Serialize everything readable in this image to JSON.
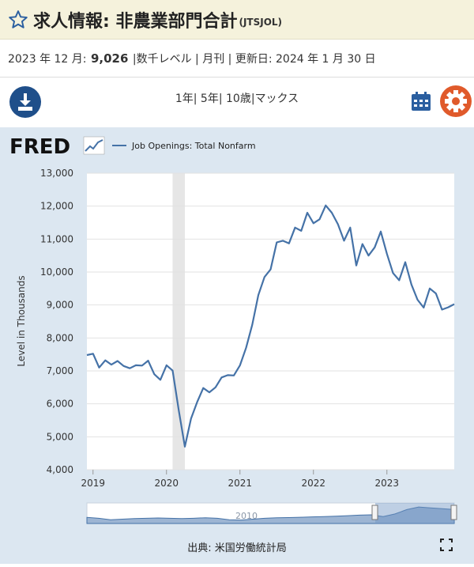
{
  "header": {
    "title": "求人情報: 非農業部門合計",
    "series_id": "(JTSJOL)"
  },
  "info": {
    "period": "2023 年 12 月:",
    "value": "9,026",
    "unit": "|数千レベル | 月刊 | 更新日:",
    "updated": "2024 年 1 月 30 日"
  },
  "toolbar": {
    "ranges": [
      "1年",
      "5年",
      "10歳",
      "マックス"
    ]
  },
  "logo": {
    "text": "FRED"
  },
  "chart_data": {
    "type": "line",
    "legend": "Job Openings: Total Nonfarm",
    "ylabel": "Level in Thousands",
    "xlabel": "",
    "ylim": [
      4000,
      13000
    ],
    "yticks": [
      "4,000",
      "5,000",
      "6,000",
      "7,000",
      "8,000",
      "9,000",
      "10,000",
      "11,000",
      "12,000",
      "13,000"
    ],
    "xticks": [
      "2019",
      "2020",
      "2021",
      "2022",
      "2023"
    ],
    "recession": [
      "2020-02",
      "2020-04"
    ],
    "series": [
      {
        "values": [
          [
            "2018-12",
            7480
          ],
          [
            "2019-01",
            7520
          ],
          [
            "2019-02",
            7100
          ],
          [
            "2019-03",
            7320
          ],
          [
            "2019-04",
            7190
          ],
          [
            "2019-05",
            7300
          ],
          [
            "2019-06",
            7150
          ],
          [
            "2019-07",
            7080
          ],
          [
            "2019-08",
            7170
          ],
          [
            "2019-09",
            7160
          ],
          [
            "2019-10",
            7310
          ],
          [
            "2019-11",
            6900
          ],
          [
            "2019-12",
            6730
          ],
          [
            "2020-01",
            7170
          ],
          [
            "2020-02",
            7010
          ],
          [
            "2020-03",
            5800
          ],
          [
            "2020-04",
            4700
          ],
          [
            "2020-05",
            5550
          ],
          [
            "2020-06",
            6050
          ],
          [
            "2020-07",
            6480
          ],
          [
            "2020-08",
            6350
          ],
          [
            "2020-09",
            6500
          ],
          [
            "2020-10",
            6800
          ],
          [
            "2020-11",
            6870
          ],
          [
            "2020-12",
            6860
          ],
          [
            "2021-01",
            7170
          ],
          [
            "2021-02",
            7700
          ],
          [
            "2021-03",
            8400
          ],
          [
            "2021-04",
            9300
          ],
          [
            "2021-05",
            9850
          ],
          [
            "2021-06",
            10080
          ],
          [
            "2021-07",
            10900
          ],
          [
            "2021-08",
            10950
          ],
          [
            "2021-09",
            10870
          ],
          [
            "2021-10",
            11350
          ],
          [
            "2021-11",
            11250
          ],
          [
            "2021-12",
            11800
          ],
          [
            "2022-01",
            11480
          ],
          [
            "2022-02",
            11600
          ],
          [
            "2022-03",
            12020
          ],
          [
            "2022-04",
            11800
          ],
          [
            "2022-05",
            11450
          ],
          [
            "2022-06",
            10950
          ],
          [
            "2022-07",
            11350
          ],
          [
            "2022-08",
            10200
          ],
          [
            "2022-09",
            10850
          ],
          [
            "2022-10",
            10500
          ],
          [
            "2022-11",
            10750
          ],
          [
            "2022-12",
            11230
          ],
          [
            "2023-01",
            10550
          ],
          [
            "2023-02",
            9970
          ],
          [
            "2023-03",
            9750
          ],
          [
            "2023-04",
            10300
          ],
          [
            "2023-05",
            9620
          ],
          [
            "2023-06",
            9160
          ],
          [
            "2023-07",
            8920
          ],
          [
            "2023-08",
            9500
          ],
          [
            "2023-09",
            9350
          ],
          [
            "2023-10",
            8860
          ],
          [
            "2023-11",
            8930
          ],
          [
            "2023-12",
            9026
          ]
        ]
      }
    ],
    "navigator": {
      "label": "2010"
    },
    "colors": {
      "line": "#4572a7",
      "plot_bg": "#ffffff",
      "recession": "#e6e6e6",
      "page_bg": "#dce7f1"
    }
  },
  "footer": {
    "source": "出典: 米国労働統計局"
  }
}
